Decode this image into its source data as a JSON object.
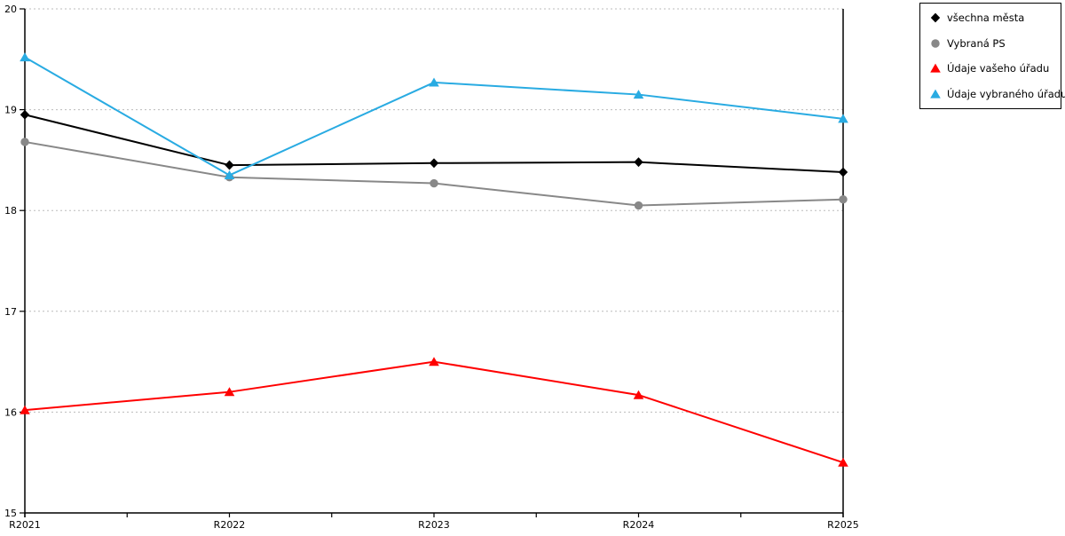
{
  "chart_data": {
    "type": "line",
    "title": "",
    "xlabel": "",
    "ylabel": "",
    "categories": [
      "R2021",
      "R2022",
      "R2023",
      "R2024",
      "R2025"
    ],
    "series": [
      {
        "name": "všechna města",
        "marker": "diamond",
        "color": "#000000",
        "values": [
          18.95,
          18.45,
          18.47,
          18.48,
          18.38
        ]
      },
      {
        "name": "Vybraná PS",
        "marker": "circle",
        "color": "#888888",
        "values": [
          18.68,
          18.33,
          18.27,
          18.05,
          18.11
        ]
      },
      {
        "name": "Údaje vašeho úřadu",
        "marker": "triangle",
        "color": "#ff0000",
        "values": [
          16.02,
          16.2,
          16.5,
          16.17,
          15.5
        ]
      },
      {
        "name": "Údaje vybraného úřadu",
        "marker": "triangle",
        "color": "#29abe2",
        "values": [
          19.52,
          18.35,
          19.27,
          19.15,
          18.91
        ]
      }
    ],
    "ylim": [
      15,
      20
    ],
    "yticks": [
      15,
      16,
      17,
      18,
      19,
      20
    ],
    "grid": "horizontal-dotted",
    "legend_position": "top-right",
    "colors": {
      "gridline": "#bbbbbb",
      "axis": "#000000",
      "background": "#ffffff"
    }
  }
}
